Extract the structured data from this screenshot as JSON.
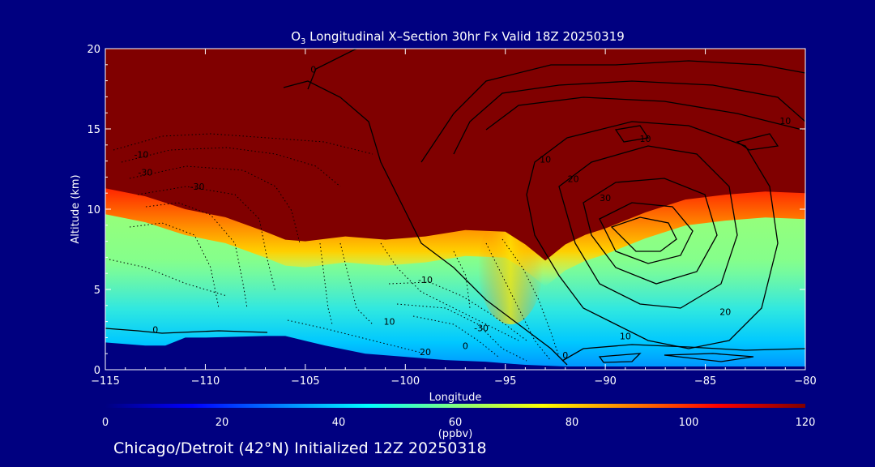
{
  "chart_data": {
    "type": "heatmap",
    "title_prefix": "O",
    "title_sub": "3",
    "title_rest": " Longitudinal X–Section 30hr  Fx Valid 18Z 20250319",
    "xlabel": "Longitude",
    "ylabel": "Altitude (km)",
    "xlim": [
      -115,
      -80
    ],
    "ylim": [
      0,
      20
    ],
    "xticks": [
      -115,
      -110,
      -105,
      -100,
      -95,
      -90,
      -85,
      -80
    ],
    "yticks": [
      0,
      5,
      10,
      15,
      20
    ],
    "colorbar": {
      "label": "(ppbv)",
      "range": [
        0,
        120
      ],
      "ticks": [
        0,
        20,
        40,
        60,
        80,
        100,
        120
      ],
      "colors": [
        "#000080",
        "#0000ff",
        "#0080ff",
        "#00ffff",
        "#80ff80",
        "#ffff00",
        "#ff8000",
        "#ff0000",
        "#800000"
      ]
    },
    "terrain_km": [
      [
        -115,
        1.7
      ],
      [
        -113,
        1.5
      ],
      [
        -112,
        1.5
      ],
      [
        -111,
        2.0
      ],
      [
        -110,
        2.0
      ],
      [
        -107,
        2.1
      ],
      [
        -106,
        2.1
      ],
      [
        -104,
        1.5
      ],
      [
        -102,
        1.0
      ],
      [
        -100,
        0.8
      ],
      [
        -98,
        0.6
      ],
      [
        -96,
        0.5
      ],
      [
        -94,
        0.3
      ],
      [
        -92,
        0.2
      ],
      [
        -90,
        0.2
      ],
      [
        -85,
        0.2
      ],
      [
        -80,
        0.2
      ]
    ],
    "tropopause_km": [
      [
        -115,
        11.3
      ],
      [
        -113,
        10.8
      ],
      [
        -111,
        10.0
      ],
      [
        -109,
        9.5
      ],
      [
        -107,
        8.6
      ],
      [
        -106,
        8.1
      ],
      [
        -105,
        8.0
      ],
      [
        -103,
        8.3
      ],
      [
        -101,
        8.1
      ],
      [
        -99,
        8.3
      ],
      [
        -97,
        8.7
      ],
      [
        -95,
        8.6
      ],
      [
        -94,
        7.8
      ],
      [
        -93,
        6.8
      ],
      [
        -92,
        7.8
      ],
      [
        -91,
        8.4
      ],
      [
        -90,
        8.8
      ],
      [
        -88,
        9.8
      ],
      [
        -86,
        10.6
      ],
      [
        -84,
        10.9
      ],
      [
        -82,
        11.1
      ],
      [
        -80,
        11.0
      ]
    ],
    "contour_labels": [
      {
        "x": -104.6,
        "y": 18.5,
        "text": "0"
      },
      {
        "x": -113.2,
        "y": 13.2,
        "text": "-10"
      },
      {
        "x": -113.0,
        "y": 12.1,
        "text": "-30"
      },
      {
        "x": -110.4,
        "y": 11.2,
        "text": "-30"
      },
      {
        "x": -99.0,
        "y": 5.4,
        "text": "-10"
      },
      {
        "x": -100.8,
        "y": 2.8,
        "text": "10"
      },
      {
        "x": -112.5,
        "y": 2.3,
        "text": "0"
      },
      {
        "x": -96.2,
        "y": 2.4,
        "text": "-30"
      },
      {
        "x": -99.0,
        "y": 0.9,
        "text": "20"
      },
      {
        "x": -97.0,
        "y": 1.3,
        "text": "0"
      },
      {
        "x": -92.0,
        "y": 0.7,
        "text": "0"
      },
      {
        "x": -93.0,
        "y": 12.9,
        "text": "10"
      },
      {
        "x": -88.0,
        "y": 14.2,
        "text": "10"
      },
      {
        "x": -91.6,
        "y": 11.7,
        "text": "20"
      },
      {
        "x": -90.0,
        "y": 10.5,
        "text": "30"
      },
      {
        "x": -84.0,
        "y": 3.4,
        "text": "20"
      },
      {
        "x": -89.0,
        "y": 1.9,
        "text": "10"
      },
      {
        "x": -81.0,
        "y": 15.3,
        "text": "10"
      }
    ]
  },
  "footer": "Chicago/Detroit (42°N) Initialized 12Z 20250318"
}
